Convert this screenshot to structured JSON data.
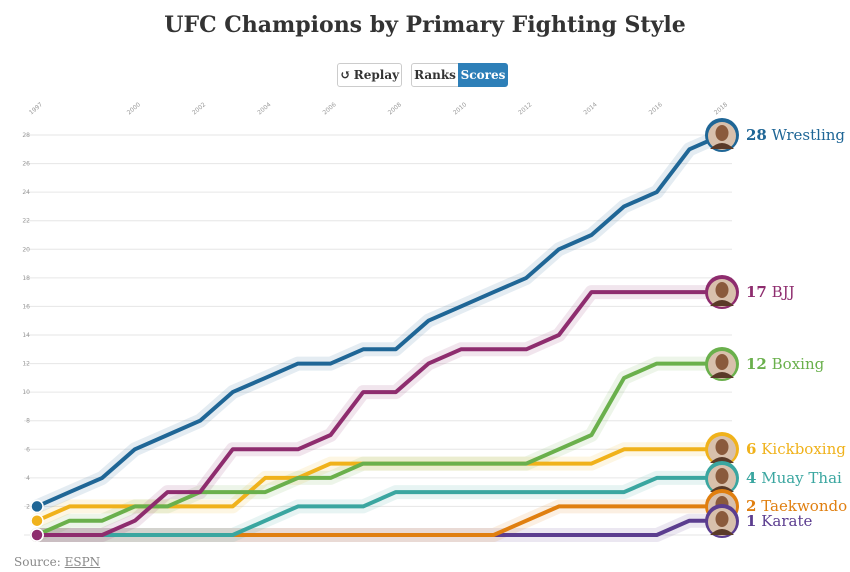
{
  "page": {
    "title": "UFC Champions by Primary Fighting Style"
  },
  "controls": {
    "replay_label": "Replay",
    "ranks_label": "Ranks",
    "scores_label": "Scores",
    "active": "Scores",
    "replay_icon": "replay-icon"
  },
  "source": {
    "prefix": "Source: ",
    "link_text": "ESPN"
  },
  "colors": {
    "Wrestling": "#1f6696",
    "BJJ": "#8e2c6e",
    "Boxing": "#6ab04c",
    "Kickboxing": "#f0b21b",
    "Muay Thai": "#3aa6a0",
    "Taekwondo": "#e07f10",
    "Karate": "#5b3d8f"
  },
  "chart_data": {
    "type": "line",
    "title": "UFC Champions by Primary Fighting Style",
    "xlabel": "",
    "ylabel": "",
    "x_ticks": [
      "1997",
      "2000",
      "2002",
      "2004",
      "2006",
      "2008",
      "2010",
      "2012",
      "2014",
      "2016",
      "2018"
    ],
    "y_ticks": [
      "2",
      "4",
      "6",
      "8",
      "10",
      "12",
      "14",
      "16",
      "18",
      "20",
      "22",
      "24",
      "26",
      "28"
    ],
    "xlim": [
      1997,
      2018
    ],
    "ylim": [
      0,
      28
    ],
    "grid": true,
    "legend": "end-labels",
    "x": [
      1997,
      1998,
      1999,
      2000,
      2001,
      2002,
      2003,
      2004,
      2005,
      2006,
      2007,
      2008,
      2009,
      2010,
      2011,
      2012,
      2013,
      2014,
      2015,
      2016,
      2017,
      2018
    ],
    "series": [
      {
        "name": "Wrestling",
        "final": "28",
        "values": [
          2,
          3,
          4,
          6,
          7,
          8,
          10,
          11,
          12,
          12,
          13,
          13,
          15,
          16,
          17,
          18,
          20,
          21,
          23,
          24,
          27,
          28
        ]
      },
      {
        "name": "BJJ",
        "final": "17",
        "values": [
          0,
          0,
          0,
          1,
          3,
          3,
          6,
          6,
          6,
          7,
          10,
          10,
          12,
          13,
          13,
          13,
          14,
          17,
          17,
          17,
          17,
          17
        ]
      },
      {
        "name": "Boxing",
        "final": "12",
        "values": [
          0,
          1,
          1,
          2,
          2,
          3,
          3,
          3,
          4,
          4,
          5,
          5,
          5,
          5,
          5,
          5,
          6,
          7,
          11,
          12,
          12,
          12
        ]
      },
      {
        "name": "Kickboxing",
        "final": "6",
        "values": [
          1,
          2,
          2,
          2,
          2,
          2,
          2,
          4,
          4,
          5,
          5,
          5,
          5,
          5,
          5,
          5,
          5,
          5,
          6,
          6,
          6,
          6
        ]
      },
      {
        "name": "Muay Thai",
        "final": "4",
        "values": [
          0,
          0,
          0,
          0,
          0,
          0,
          0,
          1,
          2,
          2,
          2,
          3,
          3,
          3,
          3,
          3,
          3,
          3,
          3,
          4,
          4,
          4
        ]
      },
      {
        "name": "Taekwondo",
        "final": "2",
        "values": [
          0,
          0,
          0,
          0,
          0,
          0,
          0,
          0,
          0,
          0,
          0,
          0,
          0,
          0,
          0,
          1,
          2,
          2,
          2,
          2,
          2,
          2
        ]
      },
      {
        "name": "Karate",
        "final": "1",
        "values": [
          0,
          0,
          0,
          0,
          0,
          0,
          0,
          0,
          0,
          0,
          0,
          0,
          0,
          0,
          0,
          0,
          0,
          0,
          0,
          0,
          1,
          1
        ]
      }
    ]
  }
}
